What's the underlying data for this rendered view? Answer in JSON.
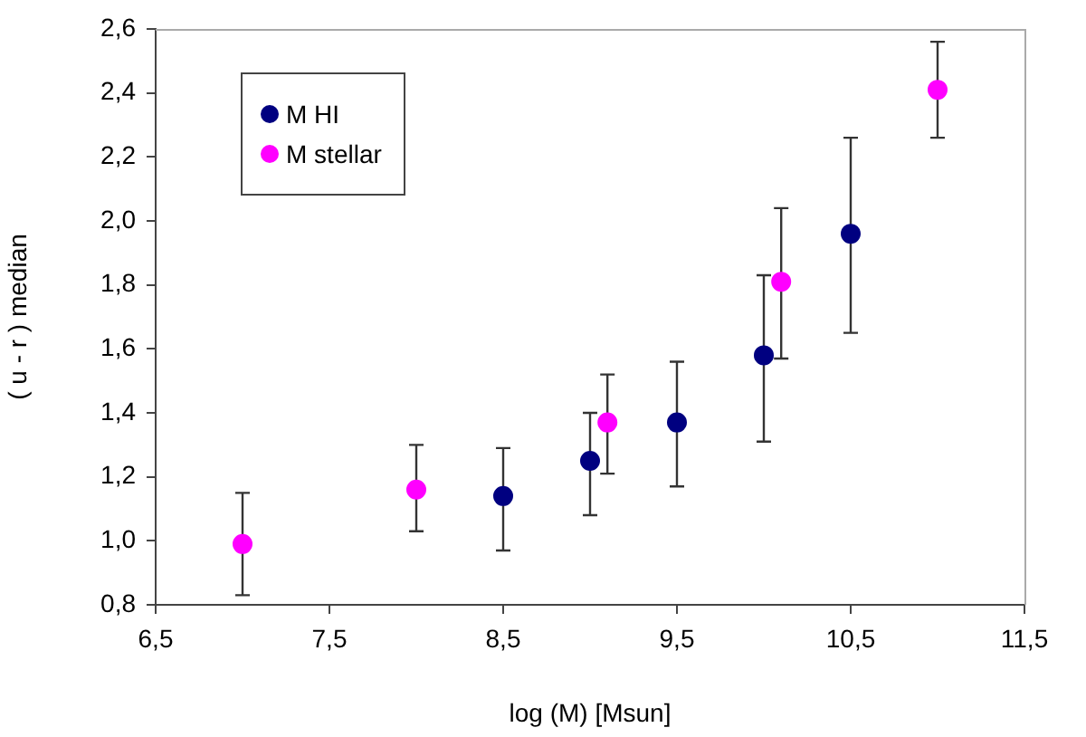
{
  "chart_data": {
    "type": "scatter",
    "xlabel": "log (M) [Msun]",
    "ylabel": "( u - r ) median",
    "xlim": [
      6.5,
      11.5
    ],
    "xticks": [
      {
        "value": 6.5,
        "label": "6,5"
      },
      {
        "value": 7.5,
        "label": "7,5"
      },
      {
        "value": 8.5,
        "label": "8,5"
      },
      {
        "value": 9.5,
        "label": "9,5"
      },
      {
        "value": 10.5,
        "label": "10,5"
      },
      {
        "value": 11.5,
        "label": "11,5"
      }
    ],
    "ylim": [
      0.8,
      2.6
    ],
    "yticks": [
      {
        "value": 0.8,
        "label": "0,8"
      },
      {
        "value": 1.0,
        "label": "1,0"
      },
      {
        "value": 1.2,
        "label": "1,2"
      },
      {
        "value": 1.4,
        "label": "1,4"
      },
      {
        "value": 1.6,
        "label": "1,6"
      },
      {
        "value": 1.8,
        "label": "1,8"
      },
      {
        "value": 2.0,
        "label": "2,0"
      },
      {
        "value": 2.2,
        "label": "2,2"
      },
      {
        "value": 2.4,
        "label": "2,4"
      },
      {
        "value": 2.6,
        "label": "2,6"
      }
    ],
    "grid": false,
    "legend": "top left",
    "marker": "circle",
    "series": [
      {
        "name": "M HI",
        "color": "#000080",
        "x": [
          8.5,
          9,
          9.5,
          10,
          10.5
        ],
        "values": [
          1.14,
          1.25,
          1.37,
          1.58,
          1.96
        ],
        "errors": [
          [
            0.97,
            1.29
          ],
          [
            1.08,
            1.4
          ],
          [
            1.17,
            1.56
          ],
          [
            1.31,
            1.83
          ],
          [
            1.65,
            2.26
          ]
        ]
      },
      {
        "name": "M stellar",
        "color": "#ff00ff",
        "x": [
          7,
          8,
          9.1,
          10.1,
          11
        ],
        "values": [
          0.99,
          1.16,
          1.37,
          1.81,
          2.41
        ],
        "errors": [
          [
            0.83,
            1.15
          ],
          [
            1.03,
            1.3
          ],
          [
            1.21,
            1.52
          ],
          [
            1.57,
            2.04
          ],
          [
            2.26,
            2.56
          ]
        ]
      }
    ]
  }
}
